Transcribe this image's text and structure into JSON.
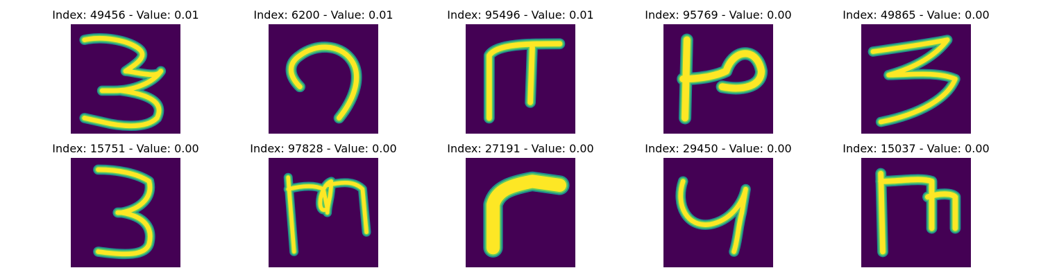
{
  "panels": [
    {
      "title": "Index: 49456 - Value: 0.01",
      "glyph": "three-a"
    },
    {
      "title": "Index: 6200 - Value: 0.01",
      "glyph": "loop"
    },
    {
      "title": "Index: 95496 - Value: 0.01",
      "glyph": "pi"
    },
    {
      "title": "Index: 95769 - Value: 0.00",
      "glyph": "bar-hook"
    },
    {
      "title": "Index: 49865 - Value: 0.00",
      "glyph": "three-b"
    },
    {
      "title": "Index: 15751 - Value: 0.00",
      "glyph": "three-c"
    },
    {
      "title": "Index: 97828 - Value: 0.00",
      "glyph": "m-knot"
    },
    {
      "title": "Index: 27191 - Value: 0.00",
      "glyph": "corner"
    },
    {
      "title": "Index: 29450 - Value: 0.00",
      "glyph": "u-tail"
    },
    {
      "title": "Index: 15037 - Value: 0.00",
      "glyph": "m-box"
    }
  ],
  "colors": {
    "background": "#440154",
    "stroke_edge": "#21908c",
    "stroke_mid": "#5ec962",
    "stroke_core": "#fde725"
  }
}
